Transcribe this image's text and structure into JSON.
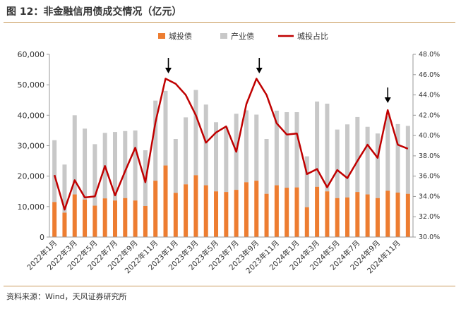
{
  "header": {
    "title": "图 12：非金融信用债成交情况（亿元）"
  },
  "footer": {
    "source": "资料来源：Wind，天风证券研究所"
  },
  "colors": {
    "city": "#ed7d31",
    "industry": "#c8c8c8",
    "ratio": "#c00000",
    "rule": "#c99a5b"
  },
  "chart_data": {
    "type": "bar",
    "legend_position": "top",
    "grid": false,
    "categories": [
      "2022年1月",
      "2022年2月",
      "2022年3月",
      "2022年4月",
      "2022年5月",
      "2022年6月",
      "2022年7月",
      "2022年8月",
      "2022年9月",
      "2022年10月",
      "2022年11月",
      "2022年12月",
      "2023年1月",
      "2023年2月",
      "2023年3月",
      "2023年4月",
      "2023年5月",
      "2023年6月",
      "2023年7月",
      "2023年8月",
      "2023年9月",
      "2023年10月",
      "2023年11月",
      "2023年12月",
      "2024年1月",
      "2024年2月",
      "2024年3月",
      "2024年4月",
      "2024年5月",
      "2024年6月",
      "2024年7月",
      "2024年8月",
      "2024年9月",
      "2024年10月",
      "2024年11月",
      "2024年12月"
    ],
    "tick_labels": [
      "2022年1月",
      "2022年3月",
      "2022年5月",
      "2022年7月",
      "2022年9月",
      "2022年11月",
      "2023年1月",
      "2023年3月",
      "2023年5月",
      "2023年7月",
      "2023年9月",
      "2023年11月",
      "2024年1月",
      "2024年3月",
      "2024年5月",
      "2024年7月",
      "2024年9月",
      "2024年11月"
    ],
    "y_left": {
      "range": [
        0,
        60000
      ],
      "ticks": [
        "0",
        "10,000",
        "20,000",
        "30,000",
        "40,000",
        "50,000",
        "60,000"
      ]
    },
    "y_right": {
      "range": [
        30,
        48
      ],
      "ticks": [
        "30.0%",
        "32.0%",
        "34.0%",
        "36.0%",
        "38.0%",
        "40.0%",
        "42.0%",
        "44.0%",
        "46.0%",
        "48.0%"
      ]
    },
    "series": [
      {
        "name": "城投债",
        "type": "bar",
        "axis": "left",
        "values": [
          11500,
          8000,
          14000,
          12300,
          10300,
          12700,
          12000,
          12800,
          12000,
          10200,
          18500,
          23500,
          14500,
          17300,
          20300,
          17000,
          15000,
          14800,
          15500,
          18000,
          18500,
          14200,
          17000,
          16200,
          16300,
          9800,
          16500,
          15000,
          12800,
          13000,
          14800,
          14000,
          12800,
          15200,
          14600,
          14200
        ]
      },
      {
        "name": "产业债",
        "type": "bar_stacked",
        "axis": "left",
        "values": [
          20300,
          15800,
          26000,
          23300,
          20200,
          21500,
          22500,
          22000,
          23000,
          18300,
          26300,
          24500,
          17700,
          22000,
          28000,
          26500,
          22700,
          21400,
          25000,
          23600,
          21700,
          18000,
          24500,
          24800,
          24700,
          16700,
          28000,
          28800,
          22500,
          24000,
          24600,
          22200,
          21200,
          24500,
          22500,
          22300
        ]
      },
      {
        "name": "城投占比",
        "type": "line",
        "axis": "right",
        "values": [
          36.1,
          32.7,
          35.6,
          33.9,
          34.0,
          37.0,
          34.1,
          36.5,
          38.8,
          35.4,
          41.3,
          45.6,
          45.1,
          44.0,
          42.0,
          39.3,
          40.3,
          40.9,
          38.4,
          43.1,
          45.6,
          44.0,
          41.2,
          40.1,
          40.2,
          36.2,
          36.7,
          34.9,
          36.6,
          35.8,
          37.5,
          39.1,
          37.8,
          42.5,
          39.1,
          38.7
        ]
      }
    ],
    "annotations": [
      {
        "type": "arrow",
        "category": "2022年12月"
      },
      {
        "type": "arrow",
        "category": "2023年9月"
      },
      {
        "type": "arrow",
        "category": "2024年10月"
      }
    ]
  }
}
